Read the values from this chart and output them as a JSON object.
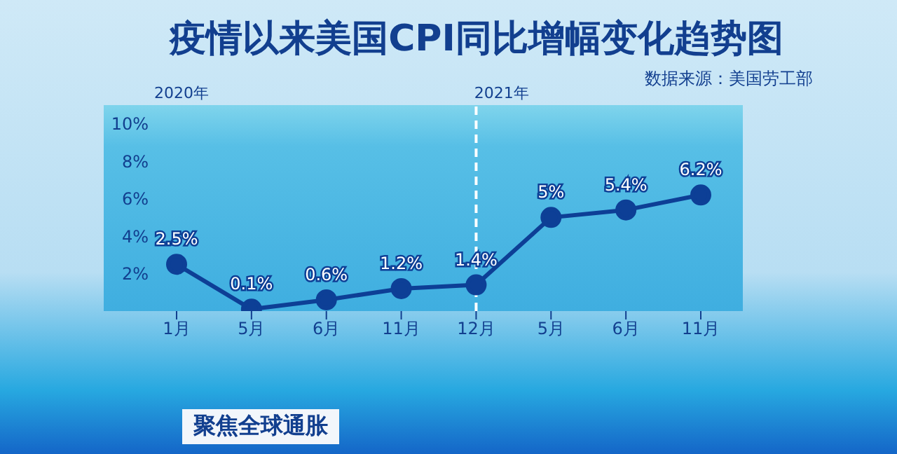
{
  "chart_data": {
    "type": "line",
    "title": "疫情以来美国CPI同比增幅变化趋势图",
    "categories": [
      "1月",
      "5月",
      "6月",
      "11月",
      "12月",
      "5月",
      "6月",
      "11月"
    ],
    "series": [
      {
        "color": "#0d3f96",
        "values": [
          2.5,
          0.1,
          0.6,
          1.2,
          1.4,
          5,
          5.4,
          6.2
        ],
        "value_labels": [
          "2.5%",
          "0.1%",
          "0.6%",
          "1.2%",
          "1.4%",
          "5%",
          "5.4%",
          "6.2%"
        ]
      }
    ],
    "ylim": [
      0,
      11
    ],
    "yticks": [
      {
        "value": 2,
        "label": "2%"
      },
      {
        "value": 4,
        "label": "4%"
      },
      {
        "value": 6,
        "label": "6%"
      },
      {
        "value": 8,
        "label": "8%"
      },
      {
        "value": 10,
        "label": "10%"
      }
    ],
    "ref_lines": [
      {
        "axis": "x",
        "value": "12月",
        "color": "#ffffff",
        "line_style": "dashed"
      }
    ],
    "marker": "circle",
    "line_style": "solid",
    "annotations": [
      "2020年",
      "2021年",
      "数据来源：美国劳工部",
      "聚焦全球通胀"
    ]
  }
}
